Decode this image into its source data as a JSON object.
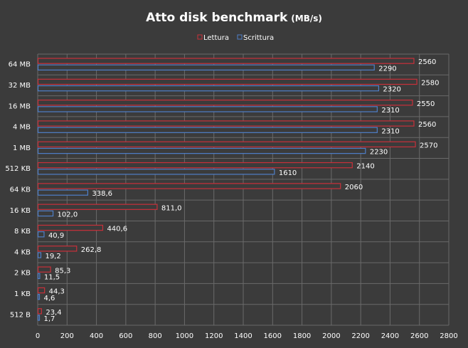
{
  "chart_data": {
    "type": "bar",
    "orientation": "horizontal",
    "title": "Atto disk benchmark",
    "title_unit": "(MB/s)",
    "categories": [
      "64 MB",
      "32 MB",
      "16 MB",
      "4 MB",
      "1 MB",
      "512 KB",
      "64 KB",
      "16 KB",
      "8 KB",
      "4 KB",
      "2 KB",
      "1 KB",
      "512 B"
    ],
    "series": [
      {
        "name": "Lettura",
        "color": "#c8303a",
        "fill": "#3b3b3b",
        "values": [
          2560,
          2580,
          2550,
          2560,
          2570,
          2140,
          2060,
          811.0,
          440.6,
          262.8,
          85.3,
          44.3,
          23.4
        ],
        "labels": [
          "2560",
          "2580",
          "2550",
          "2560",
          "2570",
          "2140",
          "2060",
          "811,0",
          "440,6",
          "262,8",
          "85,3",
          "44,3",
          "23,4"
        ]
      },
      {
        "name": "Scrittura",
        "color": "#4f7fc8",
        "fill": "#3b3b3b",
        "values": [
          2290,
          2320,
          2310,
          2310,
          2230,
          1610,
          338.6,
          102.0,
          40.9,
          19.2,
          11.5,
          4.6,
          1.7
        ],
        "labels": [
          "2290",
          "2320",
          "2310",
          "2310",
          "2230",
          "1610",
          "338,6",
          "102,0",
          "40,9",
          "19,2",
          "11,5",
          "4,6",
          "1,7"
        ]
      }
    ],
    "xlim": [
      0,
      2800
    ],
    "xticks": [
      0,
      200,
      400,
      600,
      800,
      1000,
      1200,
      1400,
      1600,
      1800,
      2000,
      2200,
      2400,
      2600,
      2800
    ],
    "xlabel": "",
    "ylabel": "",
    "grid": true,
    "legend_position": "top"
  },
  "colors": {
    "background": "#3b3b3b",
    "grid": "#6a6a6a",
    "text": "#ffffff"
  }
}
